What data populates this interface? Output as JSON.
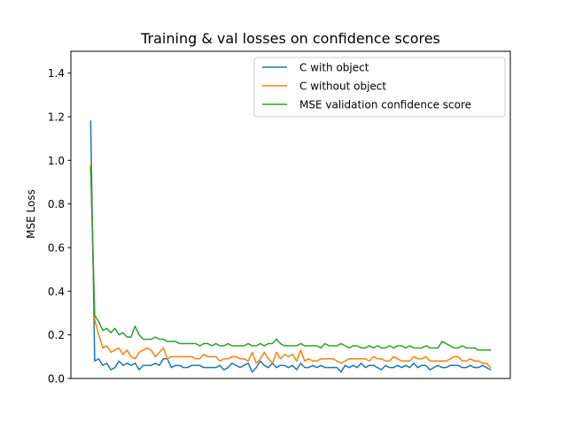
{
  "chart_data": {
    "type": "line",
    "title": "Training & val losses on confidence scores",
    "xlabel": "",
    "ylabel": "MSE Loss",
    "ylim": [
      0.0,
      1.5
    ],
    "xlim": [
      -4.9,
      103.9
    ],
    "yticks": [
      "0.0",
      "0.2",
      "0.4",
      "0.6",
      "0.8",
      "1.0",
      "1.2",
      "1.4"
    ],
    "grid": false,
    "legend_position": "top-right",
    "series": [
      {
        "name": "C with object",
        "color": "#1f77b4",
        "values": [
          1.18,
          0.08,
          0.09,
          0.06,
          0.07,
          0.04,
          0.05,
          0.08,
          0.06,
          0.07,
          0.06,
          0.07,
          0.04,
          0.06,
          0.06,
          0.06,
          0.07,
          0.06,
          0.09,
          0.09,
          0.05,
          0.06,
          0.06,
          0.05,
          0.05,
          0.06,
          0.06,
          0.06,
          0.05,
          0.05,
          0.05,
          0.05,
          0.06,
          0.04,
          0.05,
          0.07,
          0.06,
          0.05,
          0.06,
          0.07,
          0.03,
          0.05,
          0.08,
          0.06,
          0.05,
          0.07,
          0.05,
          0.06,
          0.06,
          0.05,
          0.06,
          0.04,
          0.07,
          0.05,
          0.05,
          0.06,
          0.05,
          0.06,
          0.05,
          0.05,
          0.05,
          0.05,
          0.03,
          0.06,
          0.05,
          0.06,
          0.05,
          0.07,
          0.05,
          0.06,
          0.06,
          0.05,
          0.04,
          0.06,
          0.05,
          0.05,
          0.06,
          0.05,
          0.06,
          0.05,
          0.07,
          0.05,
          0.06,
          0.06,
          0.04,
          0.05,
          0.06,
          0.05,
          0.05,
          0.06,
          0.06,
          0.06,
          0.05,
          0.05,
          0.06,
          0.05,
          0.05,
          0.06,
          0.05,
          0.04
        ]
      },
      {
        "name": "C without object",
        "color": "#ff7f0e",
        "values": [
          0.98,
          0.27,
          0.2,
          0.14,
          0.15,
          0.12,
          0.13,
          0.14,
          0.11,
          0.13,
          0.1,
          0.09,
          0.12,
          0.13,
          0.14,
          0.13,
          0.1,
          0.12,
          0.14,
          0.09,
          0.1,
          0.1,
          0.1,
          0.1,
          0.1,
          0.1,
          0.09,
          0.09,
          0.11,
          0.1,
          0.1,
          0.1,
          0.08,
          0.09,
          0.09,
          0.1,
          0.1,
          0.09,
          0.09,
          0.08,
          0.12,
          0.07,
          0.09,
          0.12,
          0.09,
          0.07,
          0.12,
          0.09,
          0.11,
          0.1,
          0.11,
          0.08,
          0.13,
          0.08,
          0.09,
          0.08,
          0.08,
          0.09,
          0.09,
          0.09,
          0.09,
          0.08,
          0.07,
          0.08,
          0.09,
          0.09,
          0.09,
          0.09,
          0.09,
          0.08,
          0.1,
          0.09,
          0.09,
          0.08,
          0.08,
          0.1,
          0.09,
          0.08,
          0.08,
          0.08,
          0.1,
          0.09,
          0.09,
          0.1,
          0.08,
          0.08,
          0.08,
          0.08,
          0.08,
          0.09,
          0.1,
          0.1,
          0.08,
          0.08,
          0.09,
          0.08,
          0.08,
          0.07,
          0.07,
          0.05
        ]
      },
      {
        "name": "MSE validation confidence score",
        "color": "#2ca02c",
        "values": [
          0.97,
          0.29,
          0.26,
          0.22,
          0.23,
          0.21,
          0.23,
          0.2,
          0.21,
          0.19,
          0.19,
          0.24,
          0.2,
          0.18,
          0.18,
          0.18,
          0.19,
          0.18,
          0.18,
          0.17,
          0.17,
          0.17,
          0.16,
          0.16,
          0.16,
          0.16,
          0.16,
          0.15,
          0.16,
          0.16,
          0.15,
          0.16,
          0.15,
          0.15,
          0.16,
          0.15,
          0.15,
          0.15,
          0.15,
          0.16,
          0.15,
          0.15,
          0.16,
          0.15,
          0.16,
          0.16,
          0.18,
          0.16,
          0.15,
          0.15,
          0.15,
          0.15,
          0.16,
          0.15,
          0.15,
          0.15,
          0.15,
          0.14,
          0.16,
          0.15,
          0.15,
          0.15,
          0.16,
          0.15,
          0.14,
          0.15,
          0.15,
          0.14,
          0.14,
          0.15,
          0.14,
          0.15,
          0.14,
          0.14,
          0.15,
          0.14,
          0.15,
          0.15,
          0.14,
          0.15,
          0.14,
          0.14,
          0.14,
          0.15,
          0.14,
          0.14,
          0.14,
          0.17,
          0.16,
          0.15,
          0.14,
          0.14,
          0.15,
          0.14,
          0.14,
          0.14,
          0.13,
          0.13,
          0.13,
          0.13
        ]
      }
    ]
  }
}
